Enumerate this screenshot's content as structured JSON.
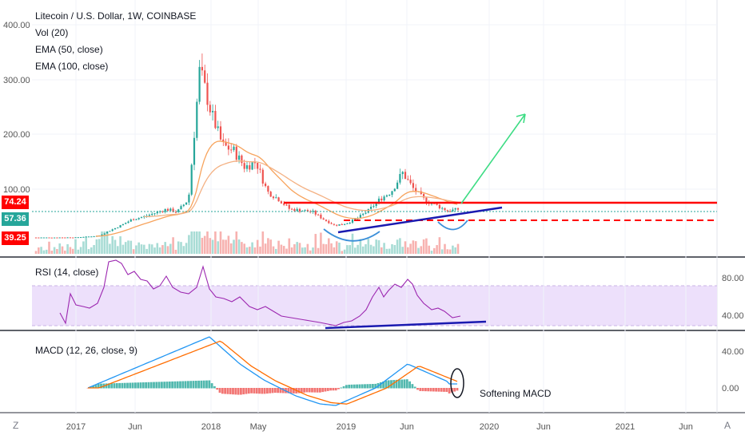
{
  "legend": {
    "symbol": "Litecoin / U.S. Dollar, 1W, COINBASE",
    "vol": "Vol (20)",
    "ema50": "EMA (50, close)",
    "ema100": "EMA (100, close)"
  },
  "rsi_label": "RSI (14, close)",
  "macd_label": "MACD (12, 26, close, 9)",
  "annotation": "Softening MACD",
  "price_tags": {
    "top": "74.24",
    "mid": "57.36",
    "bottom": "39.25"
  },
  "corner_left": "Z",
  "corner_right": "A",
  "colors": {
    "up": "#26a69a",
    "down": "#ef5350",
    "ema50": "#f7a35c",
    "ema100": "#f4b183",
    "rsi": "#9c27b0",
    "macd": "#2196f3",
    "signal": "#ff6d00",
    "resistance": "#ff0000",
    "trend": "#1a1ab0",
    "arrow": "#3ddc84",
    "tag_top": "#ff0000",
    "tag_mid": "#26a69a",
    "tag_bottom": "#ff0000"
  },
  "chart_data": [
    {
      "type": "candlestick",
      "title": "Litecoin / U.S. Dollar, 1W, COINBASE",
      "y_ticks": [
        "400.00",
        "300.00",
        "200.00",
        "100.00"
      ],
      "x_ticks": [
        "2017",
        "Jun",
        "2018",
        "May",
        "2019",
        "Jun",
        "2020",
        "Jun",
        "2021",
        "Jun"
      ],
      "close_series": [
        {
          "t": "2016-11",
          "c": 3.9
        },
        {
          "t": "2017-01",
          "c": 4.2
        },
        {
          "t": "2017-03",
          "c": 7
        },
        {
          "t": "2017-05",
          "c": 28
        },
        {
          "t": "2017-06",
          "c": 40
        },
        {
          "t": "2017-07",
          "c": 45
        },
        {
          "t": "2017-09",
          "c": 60
        },
        {
          "t": "2017-10",
          "c": 55
        },
        {
          "t": "2017-11",
          "c": 80
        },
        {
          "t": "2017-12",
          "c": 320
        },
        {
          "t": "2018-01",
          "c": 240
        },
        {
          "t": "2018-02",
          "c": 180
        },
        {
          "t": "2018-03",
          "c": 170
        },
        {
          "t": "2018-04",
          "c": 140
        },
        {
          "t": "2018-05",
          "c": 150
        },
        {
          "t": "2018-06",
          "c": 95
        },
        {
          "t": "2018-07",
          "c": 80
        },
        {
          "t": "2018-08",
          "c": 60
        },
        {
          "t": "2018-09",
          "c": 58
        },
        {
          "t": "2018-10",
          "c": 55
        },
        {
          "t": "2018-11",
          "c": 40
        },
        {
          "t": "2018-12",
          "c": 28
        },
        {
          "t": "2019-01",
          "c": 32
        },
        {
          "t": "2019-02",
          "c": 42
        },
        {
          "t": "2019-03",
          "c": 58
        },
        {
          "t": "2019-04",
          "c": 80
        },
        {
          "t": "2019-05",
          "c": 95
        },
        {
          "t": "2019-06",
          "c": 130
        },
        {
          "t": "2019-07",
          "c": 100
        },
        {
          "t": "2019-08",
          "c": 78
        },
        {
          "t": "2019-09",
          "c": 68
        },
        {
          "t": "2019-10",
          "c": 57
        },
        {
          "t": "2019-11",
          "c": 60
        }
      ],
      "annotations": {
        "resistance_level": 74.24,
        "support_dashed": 39.25,
        "current": 57.36
      }
    },
    {
      "type": "line",
      "name": "RSI (14, close)",
      "y_ticks": [
        "80.00",
        "40.00"
      ],
      "band": [
        30,
        70
      ]
    },
    {
      "type": "line",
      "name": "MACD (12, 26, close, 9)",
      "y_ticks": [
        "40.00",
        "0.00"
      ]
    }
  ]
}
